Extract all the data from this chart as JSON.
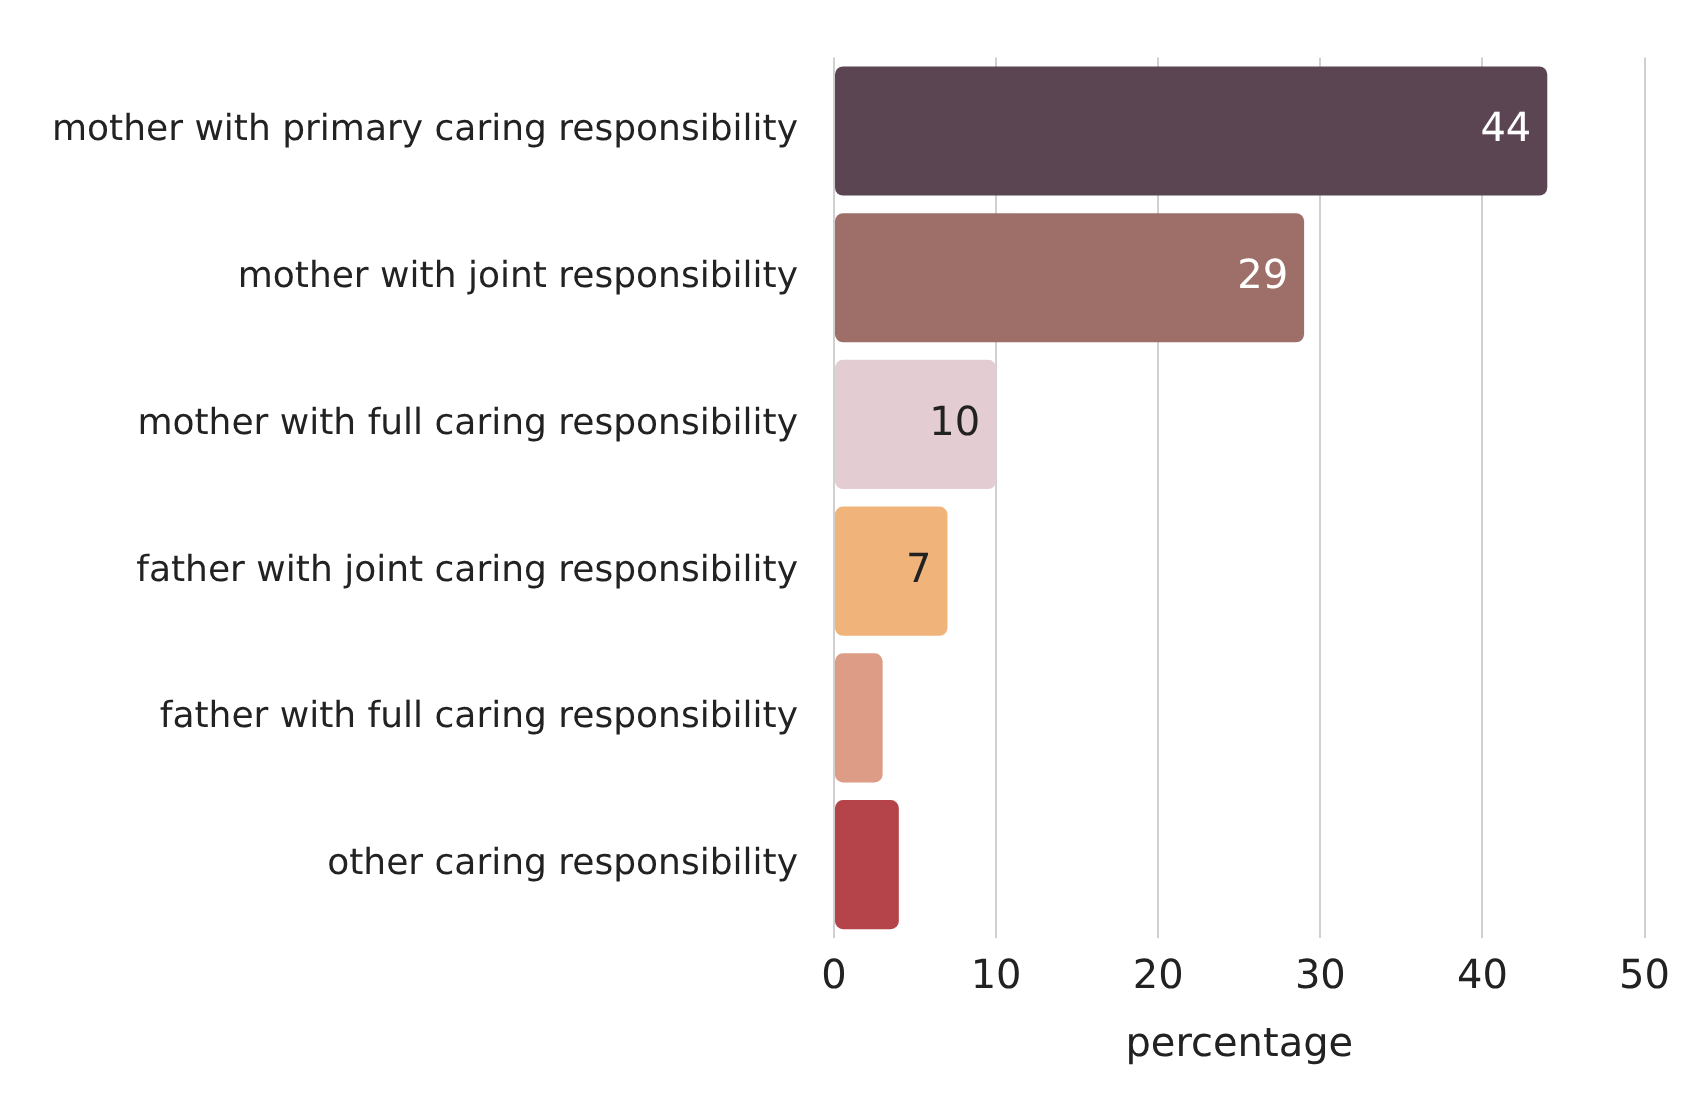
{
  "chart_data": {
    "type": "bar",
    "orientation": "horizontal",
    "xlabel": "percentage",
    "categories": [
      "mother with primary caring responsibility",
      "mother with joint responsibility",
      "mother with full caring responsibility",
      "father with joint caring responsibility",
      "father with full caring responsibility",
      "other caring responsibility"
    ],
    "values": [
      44,
      29,
      10,
      7,
      3,
      4
    ],
    "colors": [
      "#5c4552",
      "#9e6f68",
      "#e4cdd2",
      "#f0b37a",
      "#dc9c86",
      "#b5444a"
    ],
    "value_labels": [
      "44",
      "29",
      "10",
      "7",
      null,
      null
    ],
    "xlim": [
      0,
      50
    ],
    "xticks": [
      0,
      10,
      20,
      30,
      40,
      50
    ],
    "grid": "x",
    "legend": false
  }
}
